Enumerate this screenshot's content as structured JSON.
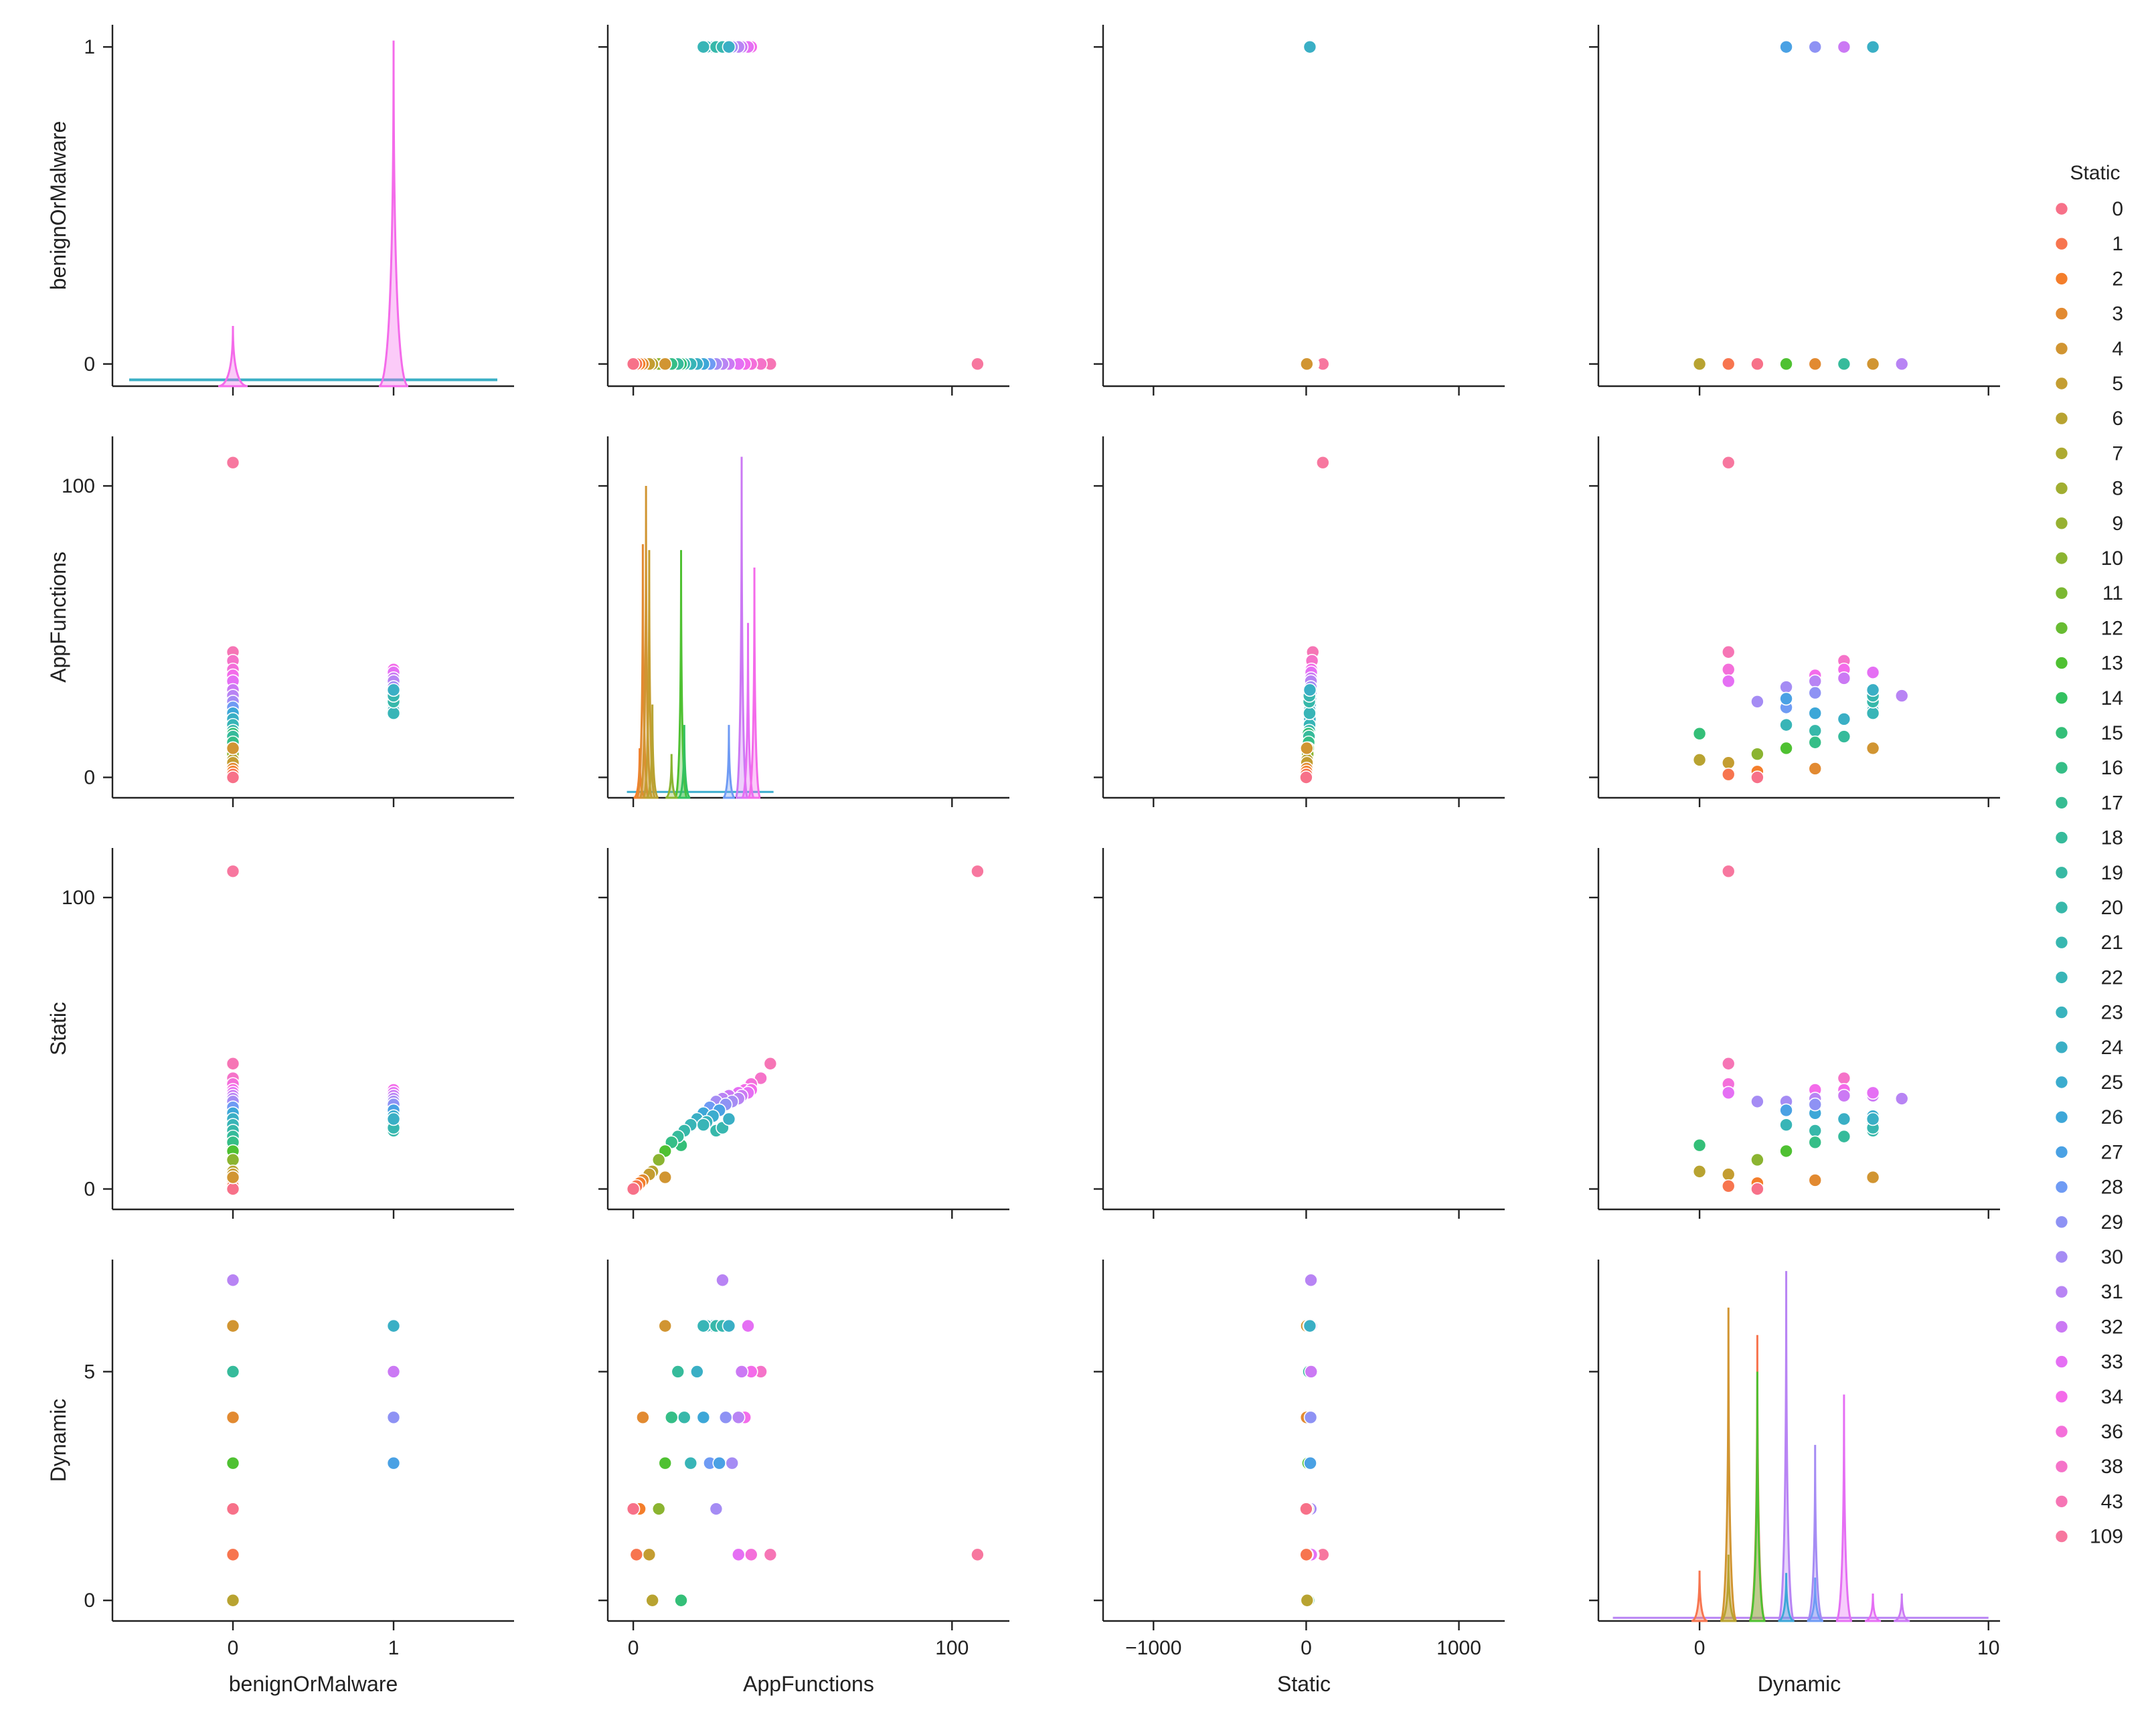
{
  "chart_data": {
    "type": "scatter",
    "title": "",
    "variables": [
      "benignOrMalware",
      "AppFunctions",
      "Static",
      "Dynamic"
    ],
    "axis_labels": {
      "benignOrMalware": "benignOrMalware",
      "AppFunctions": "AppFunctions",
      "Static": "Static",
      "Dynamic": "Dynamic"
    },
    "x_ranges": {
      "benignOrMalware": [
        -0.75,
        1.75
      ],
      "AppFunctions": [
        -8,
        118
      ],
      "Static": [
        -1330,
        1300
      ],
      "Dynamic": [
        -3.5,
        10.4
      ]
    },
    "y_ranges": {
      "benignOrMalware": [
        -0.07,
        1.07
      ],
      "AppFunctions": [
        -7,
        117
      ],
      "Static": [
        -7,
        117
      ],
      "Dynamic": [
        -0.45,
        7.45
      ]
    },
    "x_ticks": {
      "benignOrMalware": [
        0,
        1
      ],
      "AppFunctions": [
        0,
        100
      ],
      "Static": [
        -1000,
        0,
        1000
      ],
      "Dynamic": [
        0,
        10
      ]
    },
    "x_tick_labels": {
      "benignOrMalware": [
        "0",
        "1"
      ],
      "AppFunctions": [
        "0",
        "100"
      ],
      "Static": [
        "−1000",
        "0",
        "1000"
      ],
      "Dynamic": [
        "0",
        "10"
      ]
    },
    "y_ticks": {
      "benignOrMalware": [
        0,
        1
      ],
      "AppFunctions": [
        0,
        100
      ],
      "Static": [
        0,
        100
      ],
      "Dynamic": [
        0,
        5
      ]
    },
    "y_tick_labels": {
      "benignOrMalware": [
        "0",
        "1"
      ],
      "AppFunctions": [
        "0",
        "100"
      ],
      "Static": [
        "0",
        "100"
      ],
      "Dynamic": [
        "0",
        "5"
      ]
    },
    "legend": {
      "title": "Static",
      "placement": "right",
      "levels": [
        0,
        1,
        2,
        3,
        4,
        5,
        6,
        7,
        8,
        9,
        10,
        11,
        12,
        13,
        14,
        15,
        16,
        17,
        18,
        19,
        20,
        21,
        22,
        23,
        24,
        25,
        26,
        27,
        28,
        29,
        30,
        31,
        32,
        33,
        34,
        36,
        38,
        43,
        109
      ],
      "colors": [
        "#f77189",
        "#f7754f",
        "#f47e2b",
        "#e28a31",
        "#d19532",
        "#c49d31",
        "#b8a331",
        "#adaa31",
        "#a1ae31",
        "#97b131",
        "#8bb431",
        "#7bb832",
        "#68bc32",
        "#4fc132",
        "#33c15f",
        "#34bf78",
        "#35be87",
        "#36bc92",
        "#36bb9b",
        "#37b9a3",
        "#37b8aa",
        "#38b7b0",
        "#38b5b7",
        "#39b3bd",
        "#3aafc5",
        "#3bacce",
        "#3da7d8",
        "#4aa1e4",
        "#6f9bf4",
        "#8e92f4",
        "#a58cf4",
        "#b884f4",
        "#cb79f4",
        "#e56ff4",
        "#f46bea",
        "#f46fda",
        "#f573c9",
        "#f675b5",
        "#f7779f"
      ]
    },
    "points": [
      [
        0,
        108,
        109,
        1
      ],
      [
        0,
        43,
        43,
        1
      ],
      [
        0,
        40,
        38,
        5
      ],
      [
        0,
        37,
        36,
        1
      ],
      [
        0,
        35,
        34,
        4
      ],
      [
        0,
        33,
        33,
        1
      ],
      [
        0,
        30,
        32,
        6
      ],
      [
        0,
        28,
        31,
        7
      ],
      [
        0,
        26,
        30,
        2
      ],
      [
        0,
        24,
        28,
        3
      ],
      [
        0,
        22,
        26,
        4
      ],
      [
        0,
        20,
        24,
        5
      ],
      [
        0,
        18,
        22,
        3
      ],
      [
        0,
        16,
        20,
        4
      ],
      [
        0,
        15,
        15,
        0
      ],
      [
        0,
        14,
        18,
        5
      ],
      [
        0,
        12,
        16,
        4
      ],
      [
        0,
        10,
        13,
        3
      ],
      [
        0,
        8,
        10,
        2
      ],
      [
        0,
        6,
        6,
        0
      ],
      [
        0,
        5,
        5,
        1
      ],
      [
        0,
        3,
        3,
        4
      ],
      [
        0,
        2,
        2,
        2
      ],
      [
        0,
        1,
        1,
        1
      ],
      [
        0,
        0,
        0,
        2
      ],
      [
        0,
        10,
        4,
        6
      ],
      [
        1,
        37,
        34,
        5
      ],
      [
        1,
        36,
        33,
        6
      ],
      [
        1,
        34,
        32,
        5
      ],
      [
        1,
        33,
        31,
        4
      ],
      [
        1,
        31,
        30,
        3
      ],
      [
        1,
        29,
        29,
        4
      ],
      [
        1,
        27,
        27,
        3
      ],
      [
        1,
        25,
        25,
        6
      ],
      [
        1,
        23,
        23,
        6
      ],
      [
        1,
        22,
        22,
        6
      ],
      [
        1,
        26,
        20,
        6
      ],
      [
        1,
        28,
        21,
        6
      ],
      [
        1,
        30,
        24,
        6
      ]
    ],
    "diagonal": {
      "benignOrMalware": {
        "0": 0.12,
        "1": 1.02
      },
      "AppFunctions": [
        [
          2,
          10,
          2
        ],
        [
          3,
          80,
          3
        ],
        [
          4,
          100,
          4
        ],
        [
          5,
          78,
          5
        ],
        [
          6,
          25,
          6
        ],
        [
          15,
          78,
          13
        ],
        [
          16,
          18,
          14
        ],
        [
          34,
          110,
          32
        ],
        [
          36,
          53,
          33
        ],
        [
          38,
          72,
          34
        ],
        [
          30,
          18,
          28
        ],
        [
          12,
          8,
          10
        ]
      ],
      "Dynamic": [
        [
          0,
          0.65,
          1
        ],
        [
          1,
          6.4,
          4
        ],
        [
          2,
          5.8,
          1
        ],
        [
          2,
          5.0,
          13
        ],
        [
          3,
          7.2,
          31
        ],
        [
          4,
          3.4,
          30
        ],
        [
          5,
          4.5,
          33
        ],
        [
          1,
          1.0,
          6
        ],
        [
          3,
          0.6,
          26
        ],
        [
          4,
          0.5,
          28
        ],
        [
          6,
          0.15,
          33
        ],
        [
          7,
          0.15,
          32
        ]
      ]
    }
  }
}
